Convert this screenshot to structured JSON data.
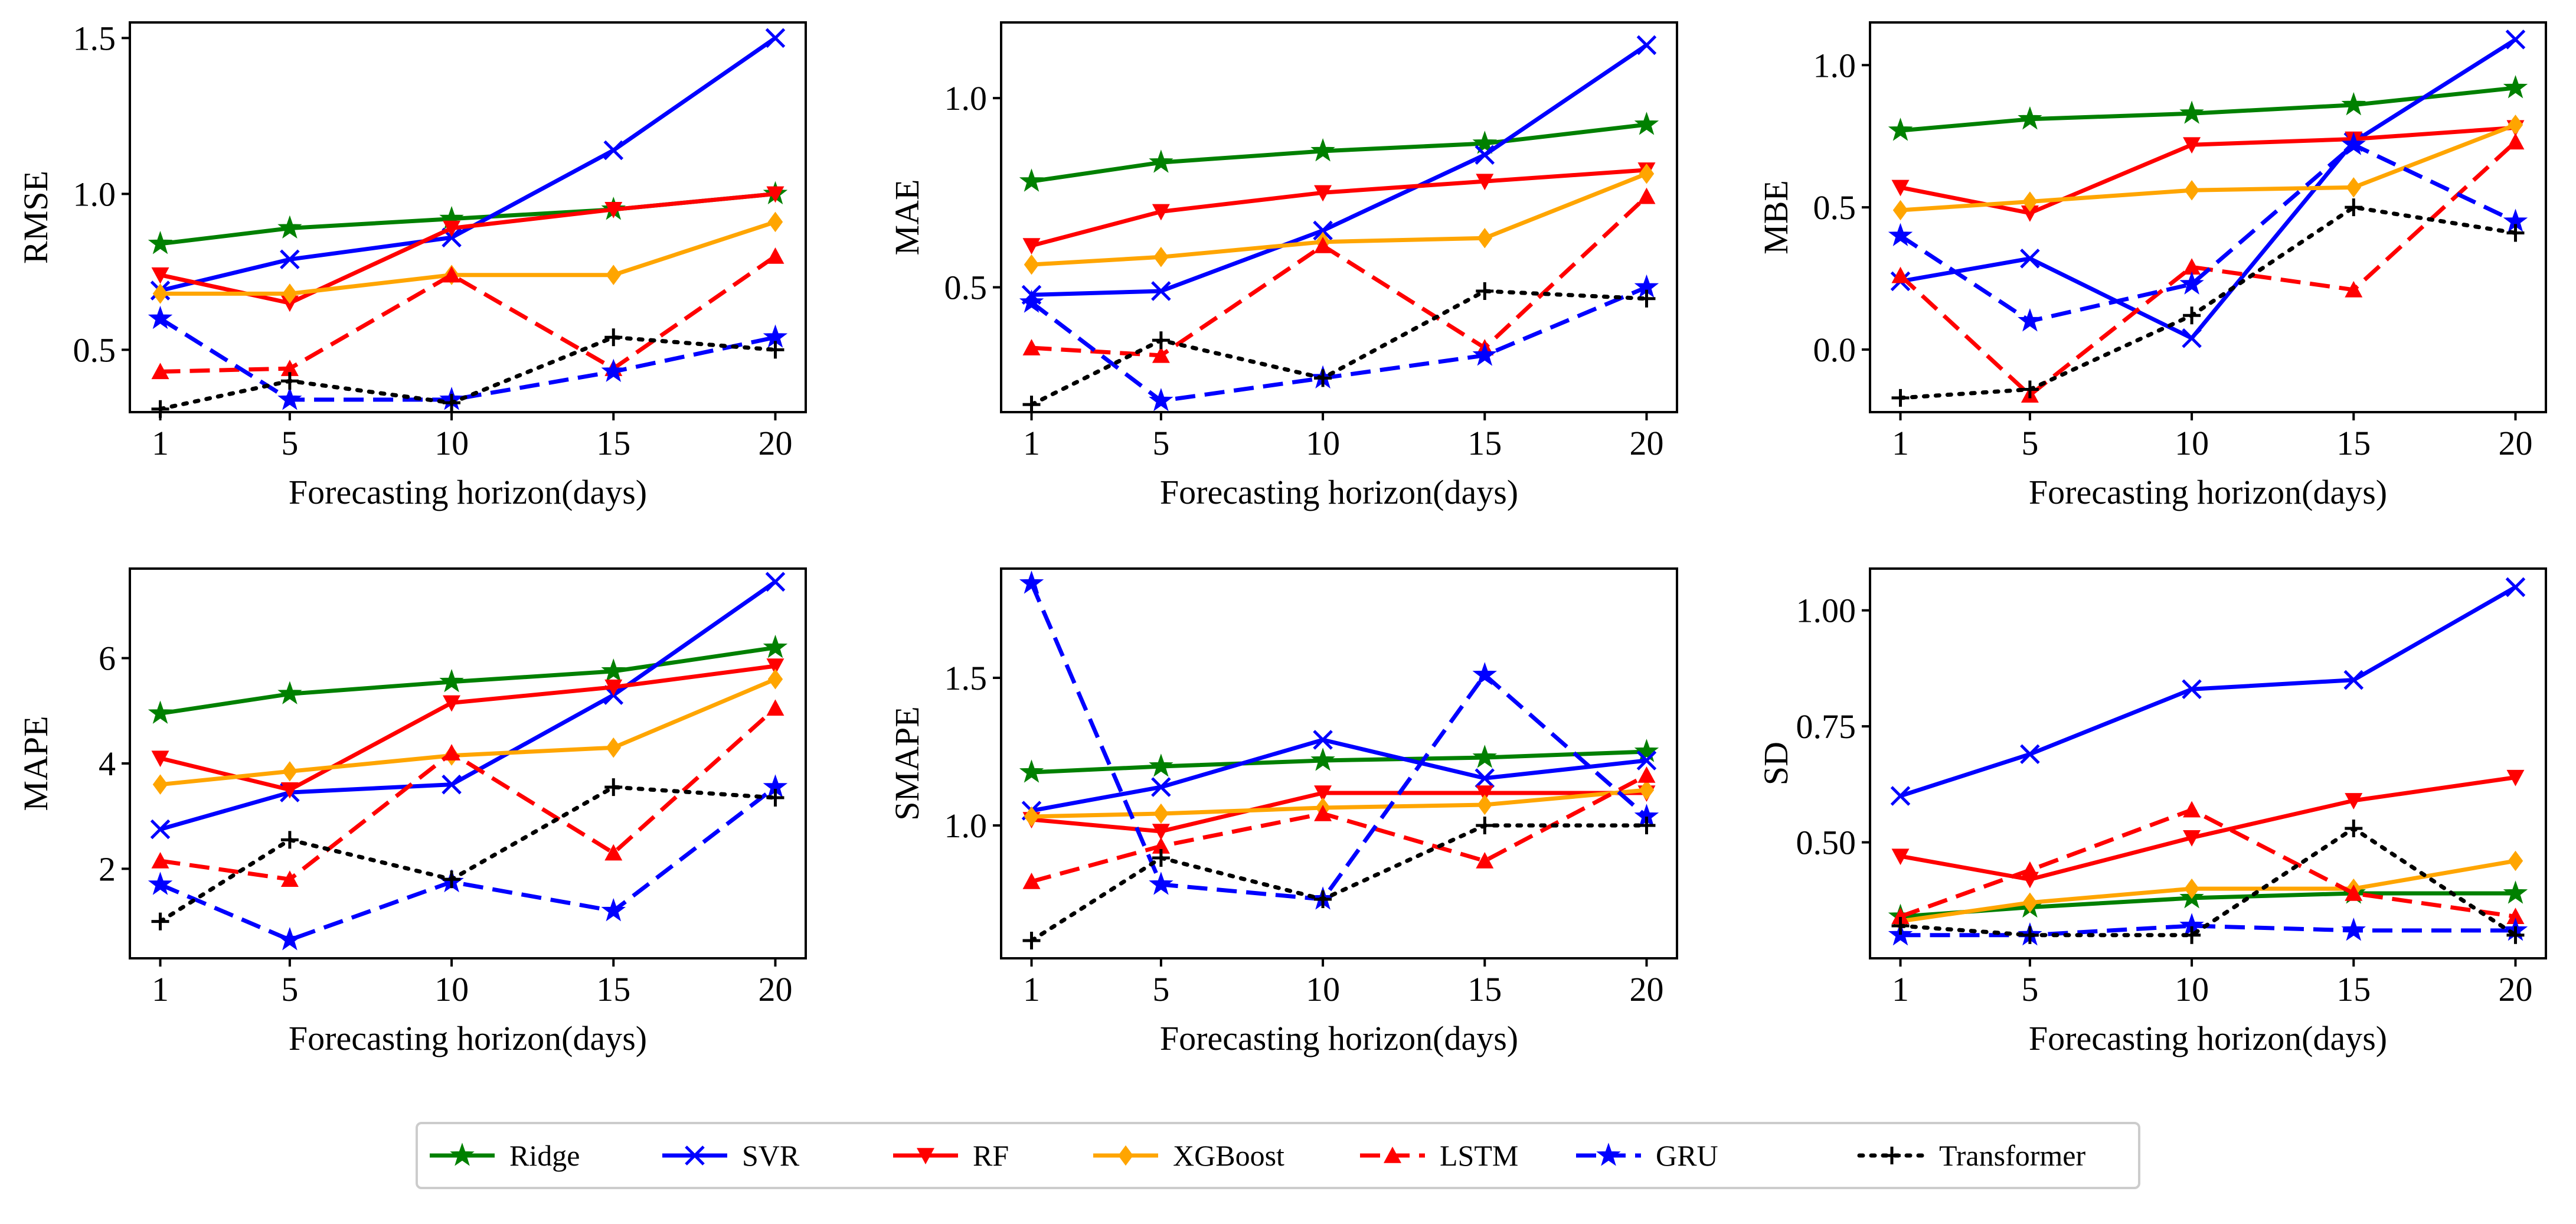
{
  "chart_data": [
    {
      "type": "line",
      "ylabel": "RMSE",
      "xlabel": "Forecasting horizon(days)",
      "categories": [
        1,
        5,
        10,
        15,
        20
      ],
      "ylim": [
        0.3,
        1.55
      ],
      "yticks": [
        0.5,
        1.0,
        1.5
      ],
      "ytick_labels": [
        "0.5",
        "1.0",
        "1.5"
      ],
      "series": [
        {
          "name": "Ridge",
          "values": [
            0.84,
            0.89,
            0.92,
            0.95,
            1.0
          ]
        },
        {
          "name": "SVR",
          "values": [
            0.69,
            0.79,
            0.86,
            1.14,
            1.5
          ]
        },
        {
          "name": "RF",
          "values": [
            0.74,
            0.65,
            0.89,
            0.95,
            1.0
          ]
        },
        {
          "name": "XGBoost",
          "values": [
            0.68,
            0.68,
            0.74,
            0.74,
            0.91
          ]
        },
        {
          "name": "LSTM",
          "values": [
            0.43,
            0.44,
            0.74,
            0.44,
            0.8
          ]
        },
        {
          "name": "GRU",
          "values": [
            0.6,
            0.34,
            0.34,
            0.43,
            0.54
          ]
        },
        {
          "name": "Transformer",
          "values": [
            0.31,
            0.4,
            0.33,
            0.54,
            0.5
          ]
        }
      ]
    },
    {
      "type": "line",
      "ylabel": "MAE",
      "xlabel": "Forecasting horizon(days)",
      "categories": [
        1,
        5,
        10,
        15,
        20
      ],
      "ylim": [
        0.17,
        1.2
      ],
      "yticks": [
        0.5,
        1.0
      ],
      "ytick_labels": [
        "0.5",
        "1.0"
      ],
      "series": [
        {
          "name": "Ridge",
          "values": [
            0.78,
            0.83,
            0.86,
            0.88,
            0.93
          ]
        },
        {
          "name": "SVR",
          "values": [
            0.48,
            0.49,
            0.65,
            0.85,
            1.14
          ]
        },
        {
          "name": "RF",
          "values": [
            0.61,
            0.7,
            0.75,
            0.78,
            0.81
          ]
        },
        {
          "name": "XGBoost",
          "values": [
            0.56,
            0.58,
            0.62,
            0.63,
            0.8
          ]
        },
        {
          "name": "LSTM",
          "values": [
            0.34,
            0.32,
            0.61,
            0.34,
            0.74
          ]
        },
        {
          "name": "GRU",
          "values": [
            0.46,
            0.2,
            0.26,
            0.32,
            0.5
          ]
        },
        {
          "name": "Transformer",
          "values": [
            0.19,
            0.36,
            0.26,
            0.49,
            0.47
          ]
        }
      ]
    },
    {
      "type": "line",
      "ylabel": "MBE",
      "xlabel": "Forecasting horizon(days)",
      "categories": [
        1,
        5,
        10,
        15,
        20
      ],
      "ylim": [
        -0.22,
        1.15
      ],
      "yticks": [
        0.0,
        0.5,
        1.0
      ],
      "ytick_labels": [
        "0.0",
        "0.5",
        "1.0"
      ],
      "series": [
        {
          "name": "Ridge",
          "values": [
            0.77,
            0.81,
            0.83,
            0.86,
            0.92
          ]
        },
        {
          "name": "SVR",
          "values": [
            0.24,
            0.32,
            0.04,
            0.73,
            1.09
          ]
        },
        {
          "name": "RF",
          "values": [
            0.57,
            0.48,
            0.72,
            0.74,
            0.78
          ]
        },
        {
          "name": "XGBoost",
          "values": [
            0.49,
            0.52,
            0.56,
            0.57,
            0.79
          ]
        },
        {
          "name": "LSTM",
          "values": [
            0.26,
            -0.16,
            0.29,
            0.21,
            0.73
          ]
        },
        {
          "name": "GRU",
          "values": [
            0.4,
            0.1,
            0.23,
            0.72,
            0.45
          ]
        },
        {
          "name": "Transformer",
          "values": [
            -0.17,
            -0.14,
            0.12,
            0.5,
            0.41
          ]
        }
      ]
    },
    {
      "type": "line",
      "ylabel": "MAPE",
      "xlabel": "Forecasting horizon(days)",
      "categories": [
        1,
        5,
        10,
        15,
        20
      ],
      "ylim": [
        0.3,
        7.7
      ],
      "yticks": [
        2,
        4,
        6
      ],
      "ytick_labels": [
        "2",
        "4",
        "6"
      ],
      "series": [
        {
          "name": "Ridge",
          "values": [
            4.95,
            5.32,
            5.55,
            5.75,
            6.2
          ]
        },
        {
          "name": "SVR",
          "values": [
            2.75,
            3.45,
            3.6,
            5.3,
            7.45
          ]
        },
        {
          "name": "RF",
          "values": [
            4.1,
            3.5,
            5.15,
            5.45,
            5.85
          ]
        },
        {
          "name": "XGBoost",
          "values": [
            3.6,
            3.85,
            4.15,
            4.3,
            5.6
          ]
        },
        {
          "name": "LSTM",
          "values": [
            2.15,
            1.8,
            4.2,
            2.3,
            5.05
          ]
        },
        {
          "name": "GRU",
          "values": [
            1.7,
            0.65,
            1.75,
            1.2,
            3.55
          ]
        },
        {
          "name": "Transformer",
          "values": [
            1.0,
            2.55,
            1.8,
            3.55,
            3.35
          ]
        }
      ]
    },
    {
      "type": "line",
      "ylabel": "SMAPE",
      "xlabel": "Forecasting horizon(days)",
      "categories": [
        1,
        5,
        10,
        15,
        20
      ],
      "ylim": [
        0.55,
        1.87
      ],
      "yticks": [
        1.0,
        1.5
      ],
      "ytick_labels": [
        "1.0",
        "1.5"
      ],
      "series": [
        {
          "name": "Ridge",
          "values": [
            1.18,
            1.2,
            1.22,
            1.23,
            1.25
          ]
        },
        {
          "name": "SVR",
          "values": [
            1.05,
            1.13,
            1.29,
            1.16,
            1.22
          ]
        },
        {
          "name": "RF",
          "values": [
            1.02,
            0.98,
            1.11,
            1.11,
            1.11
          ]
        },
        {
          "name": "XGBoost",
          "values": [
            1.03,
            1.04,
            1.06,
            1.07,
            1.12
          ]
        },
        {
          "name": "LSTM",
          "values": [
            0.81,
            0.93,
            1.04,
            0.88,
            1.17
          ]
        },
        {
          "name": "GRU",
          "values": [
            1.82,
            0.8,
            0.75,
            1.51,
            1.03
          ]
        },
        {
          "name": "Transformer",
          "values": [
            0.61,
            0.89,
            0.75,
            1.0,
            1.0
          ]
        }
      ]
    },
    {
      "type": "line",
      "ylabel": "SD",
      "xlabel": "Forecasting horizon(days)",
      "categories": [
        1,
        5,
        10,
        15,
        20
      ],
      "ylim": [
        0.25,
        1.09
      ],
      "yticks": [
        0.5,
        0.75,
        1.0
      ],
      "ytick_labels": [
        "0.50",
        "0.75",
        "1.00"
      ],
      "series": [
        {
          "name": "Ridge",
          "values": [
            0.34,
            0.36,
            0.38,
            0.39,
            0.39
          ]
        },
        {
          "name": "SVR",
          "values": [
            0.6,
            0.69,
            0.83,
            0.85,
            1.05
          ]
        },
        {
          "name": "RF",
          "values": [
            0.47,
            0.42,
            0.51,
            0.59,
            0.64
          ]
        },
        {
          "name": "XGBoost",
          "values": [
            0.33,
            0.37,
            0.4,
            0.4,
            0.46
          ]
        },
        {
          "name": "LSTM",
          "values": [
            0.34,
            0.44,
            0.57,
            0.39,
            0.34
          ]
        },
        {
          "name": "GRU",
          "values": [
            0.3,
            0.3,
            0.32,
            0.31,
            0.31
          ]
        },
        {
          "name": "Transformer",
          "values": [
            0.32,
            0.3,
            0.3,
            0.53,
            0.3
          ]
        }
      ]
    }
  ],
  "legend": {
    "placement": "bottom-center",
    "items": [
      {
        "name": "Ridge",
        "color": "#008000",
        "marker": "star",
        "dash": "solid"
      },
      {
        "name": "SVR",
        "color": "#0000ff",
        "marker": "x",
        "dash": "solid"
      },
      {
        "name": "RF",
        "color": "#ff0000",
        "marker": "triangle-down",
        "dash": "solid"
      },
      {
        "name": "XGBoost",
        "color": "#ffa500",
        "marker": "diamond",
        "dash": "solid"
      },
      {
        "name": "LSTM",
        "color": "#ff0000",
        "marker": "triangle-up",
        "dash": "dashed"
      },
      {
        "name": "GRU",
        "color": "#0000ff",
        "marker": "star",
        "dash": "dashed"
      },
      {
        "name": "Transformer",
        "color": "#000000",
        "marker": "plus",
        "dash": "dotted"
      }
    ]
  }
}
